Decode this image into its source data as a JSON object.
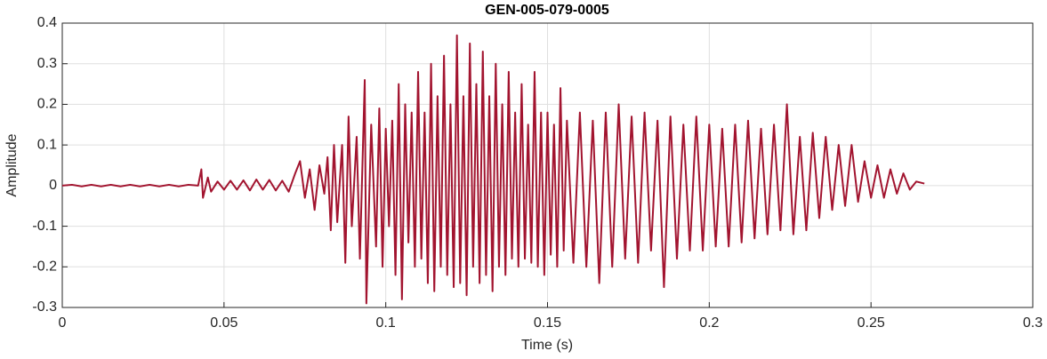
{
  "chart_data": {
    "type": "line",
    "title": "GEN-005-079-0005",
    "x_label": "Time (s)",
    "y_label": "Amplitude",
    "xlim": [
      0,
      0.3
    ],
    "ylim": [
      -0.3,
      0.4
    ],
    "xticks": [
      0,
      0.05,
      0.1,
      0.15,
      0.2,
      0.25,
      0.3
    ],
    "yticks": [
      -0.3,
      -0.2,
      -0.1,
      0,
      0.1,
      0.2,
      0.3,
      0.4
    ],
    "grid": true,
    "x": [
      0,
      0.003,
      0.006,
      0.009,
      0.012,
      0.015,
      0.018,
      0.021,
      0.024,
      0.027,
      0.03,
      0.033,
      0.036,
      0.039,
      0.042,
      0.043,
      0.0435,
      0.045,
      0.046,
      0.048,
      0.05,
      0.052,
      0.054,
      0.056,
      0.058,
      0.06,
      0.062,
      0.064,
      0.066,
      0.068,
      0.07,
      0.072,
      0.0735,
      0.075,
      0.0765,
      0.078,
      0.0795,
      0.081,
      0.082,
      0.083,
      0.084,
      0.085,
      0.0865,
      0.0875,
      0.0885,
      0.0895,
      0.091,
      0.092,
      0.0935,
      0.094,
      0.0955,
      0.097,
      0.098,
      0.099,
      0.1,
      0.101,
      0.102,
      0.103,
      0.104,
      0.105,
      0.106,
      0.107,
      0.108,
      0.109,
      0.11,
      0.111,
      0.112,
      0.113,
      0.114,
      0.115,
      0.116,
      0.117,
      0.118,
      0.119,
      0.12,
      0.121,
      0.122,
      0.123,
      0.124,
      0.125,
      0.126,
      0.127,
      0.128,
      0.129,
      0.13,
      0.131,
      0.132,
      0.133,
      0.134,
      0.135,
      0.136,
      0.137,
      0.138,
      0.139,
      0.14,
      0.141,
      0.142,
      0.143,
      0.144,
      0.145,
      0.146,
      0.147,
      0.148,
      0.149,
      0.15,
      0.151,
      0.152,
      0.153,
      0.154,
      0.155,
      0.156,
      0.158,
      0.16,
      0.162,
      0.164,
      0.166,
      0.168,
      0.17,
      0.172,
      0.174,
      0.176,
      0.178,
      0.18,
      0.182,
      0.184,
      0.186,
      0.188,
      0.19,
      0.192,
      0.194,
      0.196,
      0.198,
      0.2,
      0.202,
      0.204,
      0.206,
      0.208,
      0.21,
      0.212,
      0.214,
      0.216,
      0.218,
      0.22,
      0.222,
      0.224,
      0.226,
      0.228,
      0.23,
      0.232,
      0.234,
      0.236,
      0.238,
      0.24,
      0.242,
      0.244,
      0.246,
      0.248,
      0.25,
      0.252,
      0.254,
      0.256,
      0.258,
      0.26,
      0.262,
      0.264,
      0.2665
    ],
    "series": [
      {
        "name": "Amplitude",
        "color": "#a2142f",
        "values": [
          0,
          0.002,
          -0.002,
          0.002,
          -0.002,
          0.002,
          -0.002,
          0.002,
          -0.002,
          0.002,
          -0.002,
          0.002,
          -0.002,
          0.002,
          0,
          0.04,
          -0.03,
          0.02,
          -0.015,
          0.01,
          -0.01,
          0.012,
          -0.01,
          0.013,
          -0.012,
          0.015,
          -0.01,
          0.014,
          -0.012,
          0.012,
          -0.015,
          0.03,
          0.06,
          -0.03,
          0.04,
          -0.06,
          0.05,
          -0.02,
          0.07,
          -0.11,
          0.1,
          -0.09,
          0.1,
          -0.19,
          0.17,
          -0.1,
          0.12,
          -0.18,
          0.26,
          -0.29,
          0.15,
          -0.15,
          0.19,
          -0.2,
          0.14,
          -0.1,
          0.16,
          -0.22,
          0.25,
          -0.28,
          0.2,
          -0.14,
          0.18,
          -0.2,
          0.28,
          -0.18,
          0.18,
          -0.24,
          0.3,
          -0.26,
          0.22,
          -0.2,
          0.32,
          -0.22,
          0.2,
          -0.25,
          0.37,
          -0.24,
          0.22,
          -0.27,
          0.35,
          -0.2,
          0.25,
          -0.24,
          0.33,
          -0.22,
          0.22,
          -0.26,
          0.3,
          -0.2,
          0.2,
          -0.22,
          0.28,
          -0.18,
          0.18,
          -0.2,
          0.25,
          -0.18,
          0.15,
          -0.19,
          0.28,
          -0.2,
          0.18,
          -0.22,
          0.18,
          -0.17,
          0.15,
          -0.2,
          0.24,
          -0.16,
          0.16,
          -0.19,
          0.18,
          -0.2,
          0.16,
          -0.24,
          0.18,
          -0.2,
          0.2,
          -0.18,
          0.17,
          -0.19,
          0.18,
          -0.16,
          0.16,
          -0.25,
          0.17,
          -0.18,
          0.15,
          -0.16,
          0.17,
          -0.16,
          0.15,
          -0.15,
          0.14,
          -0.15,
          0.15,
          -0.14,
          0.16,
          -0.13,
          0.14,
          -0.12,
          0.15,
          -0.11,
          0.2,
          -0.12,
          0.12,
          -0.11,
          0.13,
          -0.08,
          0.12,
          -0.06,
          0.1,
          -0.05,
          0.1,
          -0.04,
          0.06,
          -0.03,
          0.05,
          -0.03,
          0.04,
          -0.02,
          0.03,
          -0.01,
          0.01,
          0.005
        ]
      }
    ]
  }
}
